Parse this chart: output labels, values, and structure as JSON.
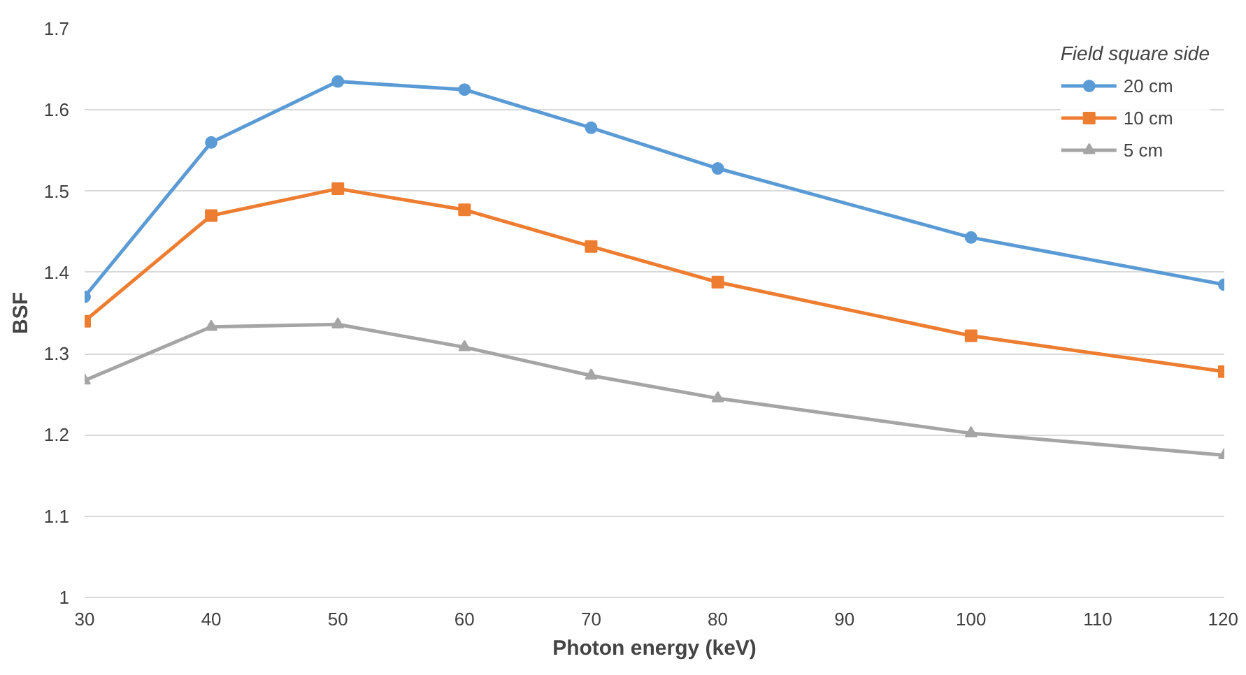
{
  "chart_data": {
    "type": "line",
    "xlabel": "Photon energy (keV)",
    "ylabel": "BSF",
    "legend_title": "Field square side",
    "legend": "top right",
    "grid": "y",
    "x": [
      30,
      40,
      50,
      60,
      70,
      80,
      100,
      120
    ],
    "xlim": [
      30,
      120
    ],
    "xticks": [
      30,
      40,
      50,
      60,
      70,
      80,
      90,
      100,
      110,
      120
    ],
    "ylim": [
      1,
      1.7
    ],
    "yticks": [
      1,
      1.1,
      1.2,
      1.3,
      1.4,
      1.5,
      1.6,
      1.7
    ],
    "series": [
      {
        "name": "20 cm",
        "color": "#5b9bd5",
        "marker": "circle",
        "values": [
          1.37,
          1.56,
          1.635,
          1.625,
          1.578,
          1.528,
          1.443,
          1.385
        ]
      },
      {
        "name": "10 cm",
        "color": "#ed7d31",
        "marker": "square",
        "values": [
          1.34,
          1.47,
          1.503,
          1.477,
          1.432,
          1.388,
          1.322,
          1.278
        ]
      },
      {
        "name": "5 cm",
        "color": "#a5a5a5",
        "marker": "triangle",
        "values": [
          1.267,
          1.333,
          1.336,
          1.308,
          1.273,
          1.245,
          1.202,
          1.175
        ]
      }
    ]
  }
}
